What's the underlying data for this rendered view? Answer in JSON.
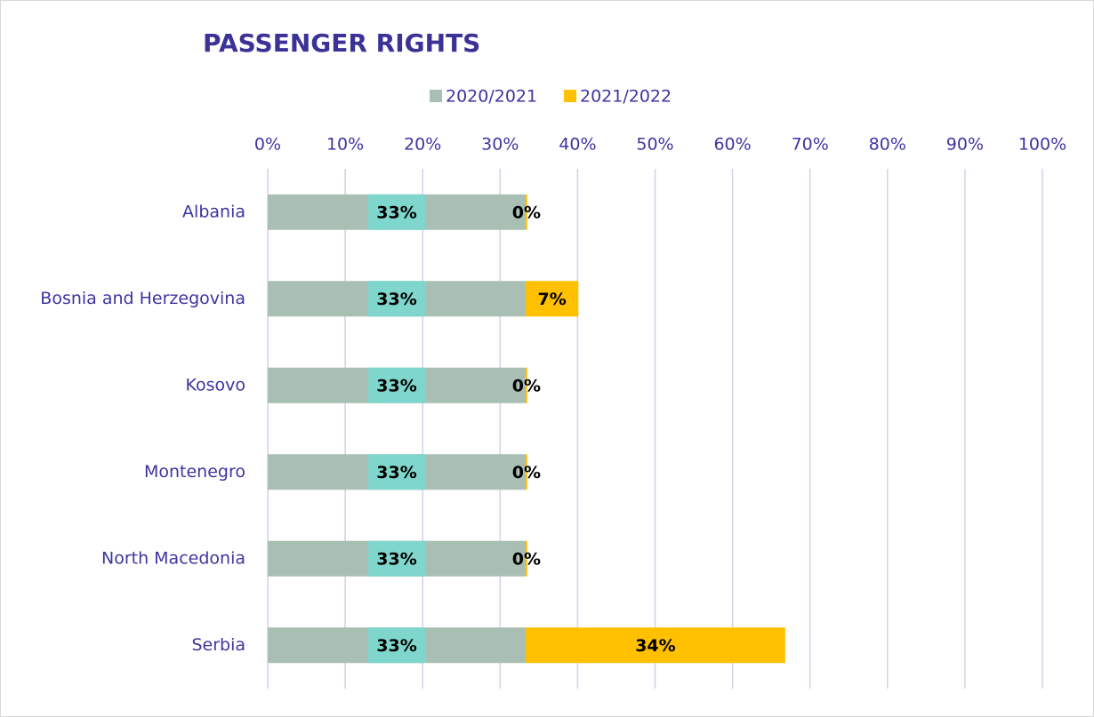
{
  "chart_data": {
    "type": "stacked_bar_horizontal",
    "title": "PASSENGER RIGHTS",
    "categories": [
      "Albania",
      "Bosnia and Herzegovina",
      "Kosovo",
      "Montenegro",
      "North Macedonia",
      "Serbia"
    ],
    "series": [
      {
        "name": "2020/2021",
        "color": "#a9bfb3",
        "values": [
          33.3,
          33.3,
          33.3,
          33.3,
          33.3,
          33.3
        ],
        "value_labels": [
          "33%",
          "33%",
          "33%",
          "33%",
          "33%",
          "33%"
        ],
        "label_background": "#7fd6cc"
      },
      {
        "name": "2021/2022",
        "color": "#ffc000",
        "values": [
          0.2,
          6.8,
          0.2,
          0.2,
          0.2,
          33.5
        ],
        "value_labels": [
          "0%",
          "7%",
          "0%",
          "0%",
          "0%",
          "34%"
        ]
      }
    ],
    "xlim": [
      0,
      100
    ],
    "xticks": [
      {
        "value": 0,
        "label": "0%"
      },
      {
        "value": 10,
        "label": "10%"
      },
      {
        "value": 20,
        "label": "20%"
      },
      {
        "value": 30,
        "label": "30%"
      },
      {
        "value": 40,
        "label": "40%"
      },
      {
        "value": 50,
        "label": "50%"
      },
      {
        "value": 60,
        "label": "60%"
      },
      {
        "value": 70,
        "label": "70%"
      },
      {
        "value": 80,
        "label": "80%"
      },
      {
        "value": 90,
        "label": "90%"
      },
      {
        "value": 100,
        "label": "100%"
      }
    ],
    "grid": true,
    "legend": "top"
  }
}
